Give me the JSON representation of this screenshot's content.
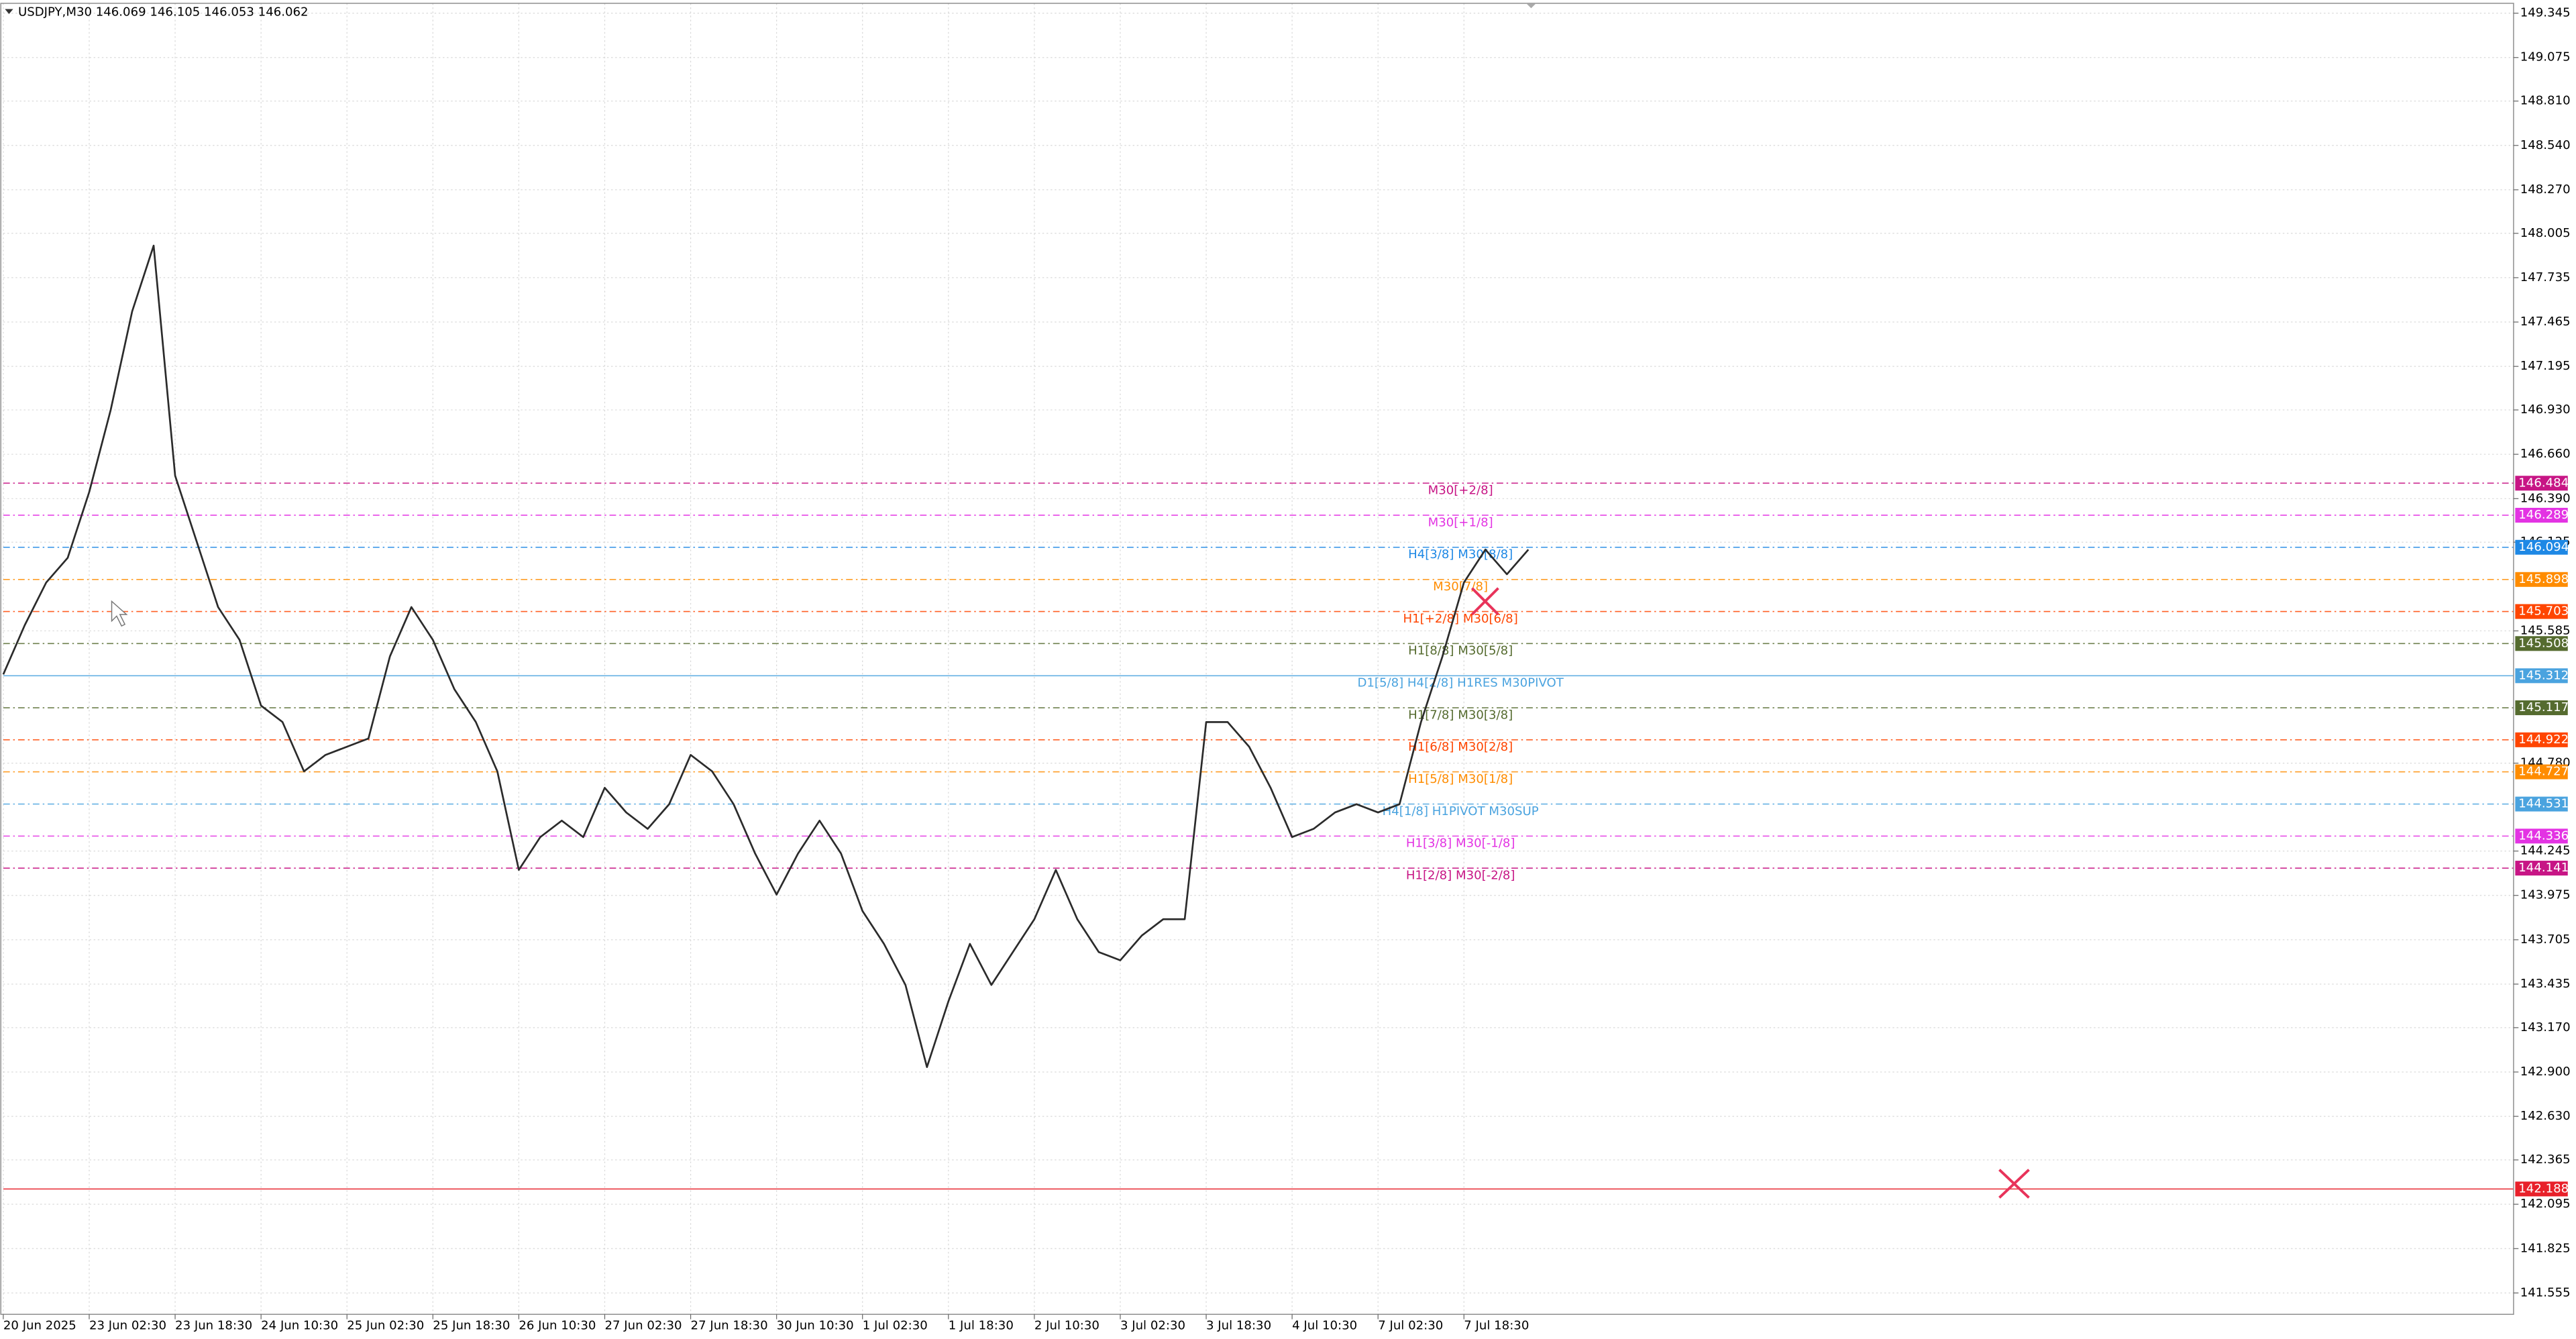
{
  "chart_data": {
    "type": "line",
    "title": "USDJPY,M30  146.069 146.105 146.053 146.062",
    "categories": [
      "20 Jun 2025",
      null,
      null,
      null,
      "23 Jun 02:30",
      null,
      null,
      null,
      "23 Jun 18:30",
      null,
      null,
      null,
      "24 Jun 10:30",
      null,
      null,
      null,
      "25 Jun 02:30",
      null,
      null,
      null,
      "25 Jun 18:30",
      null,
      null,
      null,
      "26 Jun 10:30",
      null,
      null,
      null,
      "27 Jun 02:30",
      null,
      null,
      null,
      "27 Jun 18:30",
      null,
      null,
      null,
      "30 Jun 10:30",
      null,
      null,
      null,
      "1 Jul 02:30",
      null,
      null,
      null,
      "1 Jul 18:30",
      null,
      null,
      null,
      "2 Jul 10:30",
      null,
      null,
      null,
      "3 Jul 02:30",
      null,
      null,
      null,
      "3 Jul 18:30",
      null,
      null,
      null,
      "4 Jul 10:30",
      null,
      null,
      null,
      "7 Jul 02:30",
      null,
      null,
      null,
      "7 Jul 18:30",
      null,
      null,
      null
    ],
    "values": [
      145.32,
      145.62,
      145.88,
      146.03,
      146.43,
      146.93,
      147.53,
      147.93,
      146.53,
      146.13,
      145.73,
      145.53,
      145.13,
      145.03,
      144.73,
      144.83,
      144.88,
      144.93,
      145.43,
      145.73,
      145.53,
      145.23,
      145.03,
      144.73,
      144.13,
      144.33,
      144.43,
      144.33,
      144.63,
      144.48,
      144.38,
      144.53,
      144.83,
      144.73,
      144.53,
      144.23,
      143.98,
      144.23,
      144.43,
      144.23,
      143.88,
      143.68,
      143.43,
      142.93,
      143.33,
      143.68,
      143.43,
      143.63,
      143.83,
      144.13,
      143.83,
      143.63,
      143.58,
      143.73,
      143.83,
      143.83,
      145.03,
      145.03,
      144.88,
      144.63,
      144.33,
      144.38,
      144.48,
      144.53,
      144.48,
      144.53,
      145.03,
      145.43,
      145.88,
      146.08,
      145.93,
      146.08
    ],
    "color": "#2b2b2b",
    "ylim": [
      141.425,
      149.405
    ],
    "yticks": [
      149.345,
      149.075,
      {
        "value": 148.81,
        "label": "148.810"
      },
      {
        "value": 148.54,
        "label": "148.540"
      },
      {
        "value": 148.27,
        "label": "148.270"
      },
      148.005,
      147.735,
      147.465,
      147.195,
      {
        "value": 146.93,
        "label": "146.930"
      },
      {
        "value": 146.66,
        "label": "146.660"
      },
      {
        "value": 146.39,
        "label": "146.390"
      },
      146.125,
      145.585,
      {
        "value": 144.78,
        "label": "144.780"
      },
      144.245,
      143.975,
      143.705,
      143.435,
      {
        "value": 143.17,
        "label": "143.170"
      },
      {
        "value": 142.9,
        "label": "142.900"
      },
      {
        "value": 142.63,
        "label": "142.630"
      },
      142.365,
      142.095,
      141.825,
      141.555
    ],
    "grid": true,
    "levels": [
      {
        "label": "M30[+2/8]",
        "value": 146.484,
        "color": "#c71585"
      },
      {
        "label": "M30[+1/8]",
        "value": 146.289,
        "color": "#e333e3"
      },
      {
        "label": "H4[3/8] M30[8/8]",
        "value": 146.094,
        "color": "#1e88e5"
      },
      {
        "label": "M30[7/8]",
        "value": 145.898,
        "color": "#ff8c00"
      },
      {
        "label": "H1[+2/8] M30[6/8]",
        "value": 145.703,
        "color": "#ff4500"
      },
      {
        "label": "H1[8/8] M30[5/8]",
        "value": 145.508,
        "color": "#556b2f"
      },
      {
        "label": "D1[5/8] H4[2/8] H1RES M30PIVOT",
        "value": 145.312,
        "color": "#4aa3df"
      },
      {
        "label": "H1[7/8] M30[3/8]",
        "value": 145.117,
        "color": "#556b2f"
      },
      {
        "label": "H1[6/8] M30[2/8]",
        "value": 144.922,
        "color": "#ff4500"
      },
      {
        "label": "H1[5/8] M30[1/8]",
        "value": 144.727,
        "color": "#ff8c00"
      },
      {
        "label": "H4[1/8] H1PIVOT M30SUP",
        "value": 144.531,
        "color": "#4aa3df"
      },
      {
        "label": "H1[3/8] M30[-1/8]",
        "value": 144.336,
        "color": "#e333e3"
      },
      {
        "label": "H1[2/8] M30[-2/8]",
        "value": 144.141,
        "color": "#c71585"
      },
      {
        "value": 142.188,
        "color": "#e8202a"
      }
    ]
  }
}
